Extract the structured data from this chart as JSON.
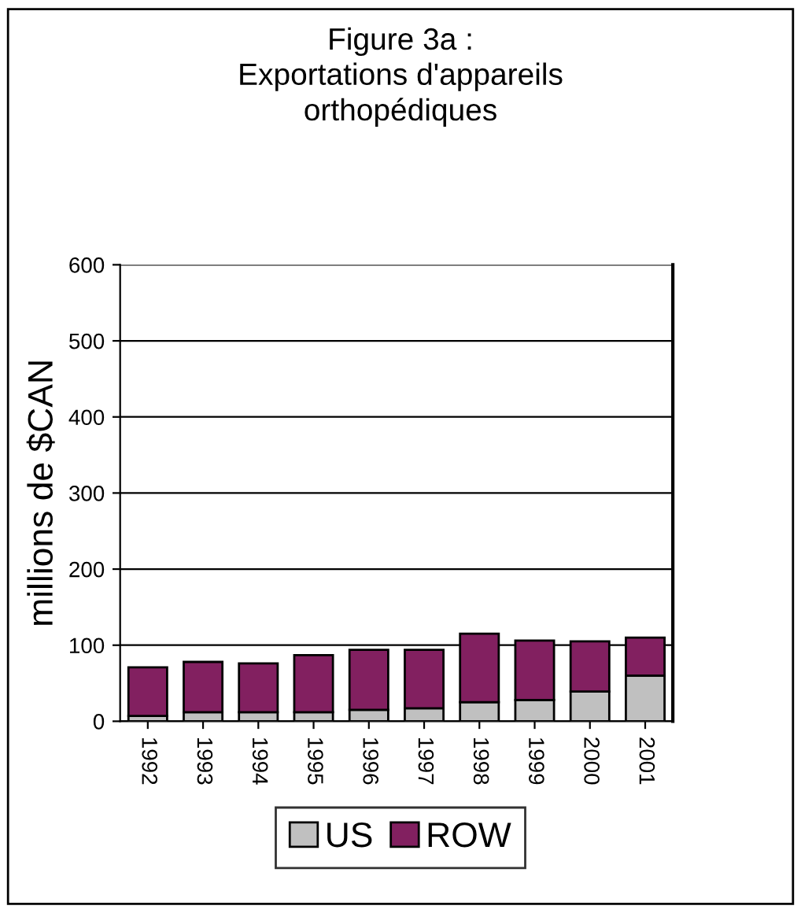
{
  "chart_data": {
    "type": "bar",
    "title": "Figure 3a :\nExportations d'appareils\northopédiques",
    "ylabel": "millions de $CAN",
    "categories": [
      "1992",
      "1993",
      "1994",
      "1995",
      "1996",
      "1997",
      "1998",
      "1999",
      "2000",
      "2001"
    ],
    "stacked": true,
    "series": [
      {
        "name": "US",
        "color": "#c0c0c0",
        "values": [
          7,
          12,
          12,
          12,
          15,
          17,
          25,
          28,
          39,
          60
        ]
      },
      {
        "name": "ROW",
        "color": "#822060",
        "values": [
          64,
          66,
          64,
          75,
          79,
          77,
          90,
          78,
          66,
          50
        ]
      }
    ],
    "ylim": [
      0,
      600
    ],
    "yticks": [
      0,
      100,
      200,
      300,
      400,
      500,
      600
    ],
    "grid": "y",
    "legend": "bottom"
  }
}
